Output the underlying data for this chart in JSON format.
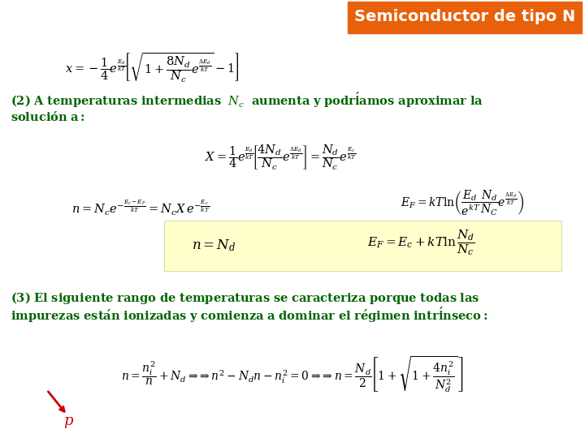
{
  "background_color": "#ffffff",
  "title_text": "Semiconductor de tipo N",
  "title_bg": "#e8610a",
  "title_color": "#ffffff",
  "green_color": "#006400",
  "red_color": "#cc0000",
  "black_color": "#000000",
  "highlight_bg": "#ffffcc"
}
